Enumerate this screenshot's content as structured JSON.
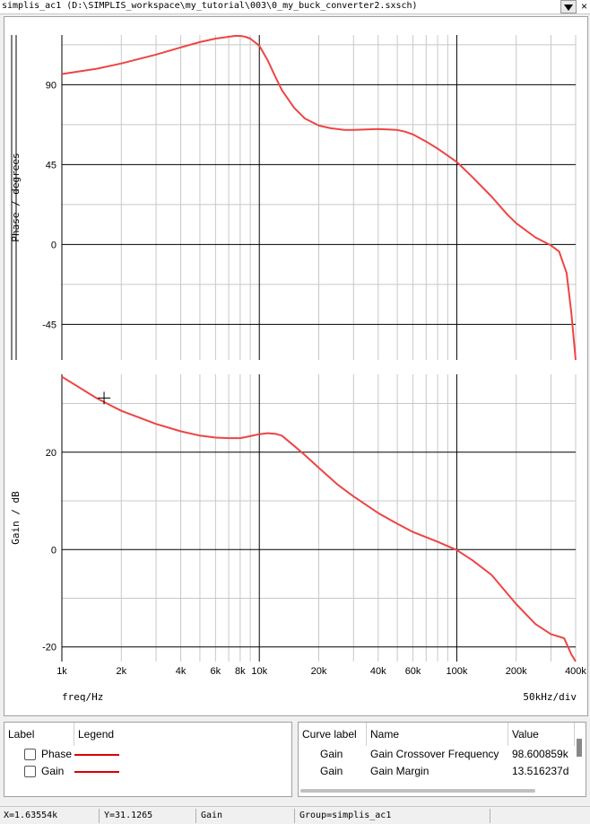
{
  "window": {
    "title": "simplis_ac1 (D:\\SIMPLIS_workspace\\my_tutorial\\003\\0_my_buck_converter2.sxsch)",
    "close_glyph": "×"
  },
  "chart_data": {
    "type": "line",
    "x_scale": "log",
    "xlim": [
      1000,
      400000
    ],
    "x_ticks": [
      {
        "v": 1000,
        "label": "1k"
      },
      {
        "v": 2000,
        "label": "2k"
      },
      {
        "v": 4000,
        "label": "4k"
      },
      {
        "v": 6000,
        "label": "6k"
      },
      {
        "v": 8000,
        "label": "8k"
      },
      {
        "v": 10000,
        "label": "10k"
      },
      {
        "v": 20000,
        "label": "20k"
      },
      {
        "v": 40000,
        "label": "40k"
      },
      {
        "v": 60000,
        "label": "60k"
      },
      {
        "v": 100000,
        "label": "100k"
      },
      {
        "v": 200000,
        "label": "200k"
      },
      {
        "v": 400000,
        "label": "400k"
      }
    ],
    "xlabel": "freq/Hz",
    "x_div_label": "50kHz/div",
    "grid": true,
    "panels": [
      {
        "name": "Phase",
        "ylabel": "Phase / degrees",
        "ylim": [
          -65,
          118
        ],
        "y_ticks": [
          -45,
          0,
          45,
          90
        ],
        "color": "#ee4444",
        "x": [
          1000,
          1500,
          2000,
          3000,
          4000,
          5000,
          6000,
          7000,
          7500,
          8000,
          8500,
          9000,
          10000,
          11000,
          12000,
          13000,
          15000,
          17000,
          20000,
          23000,
          27000,
          30000,
          40000,
          50000,
          55000,
          60000,
          70000,
          80000,
          100000,
          120000,
          150000,
          180000,
          200000,
          250000,
          300000,
          330000,
          360000,
          380000,
          400000
        ],
        "values": [
          96,
          99,
          102,
          107,
          111,
          114,
          116,
          117,
          117.5,
          117.5,
          117,
          116,
          112,
          104,
          95,
          87,
          77,
          71,
          67,
          65.5,
          64.5,
          64.5,
          65,
          64.5,
          63.5,
          62,
          58,
          54,
          46.5,
          38,
          27,
          17,
          12,
          4,
          -0.5,
          -4,
          -16,
          -38,
          -70
        ]
      },
      {
        "name": "Gain",
        "ylabel": "Gain / dB",
        "ylim": [
          -23,
          36
        ],
        "y_ticks": [
          -20,
          0,
          20
        ],
        "color": "#ee4444",
        "x": [
          1000,
          1500,
          2000,
          3000,
          4000,
          5000,
          6000,
          7000,
          8000,
          9000,
          10000,
          11000,
          12000,
          13000,
          15000,
          17000,
          20000,
          25000,
          30000,
          40000,
          50000,
          60000,
          80000,
          100000,
          120000,
          150000,
          200000,
          250000,
          300000,
          350000,
          380000,
          400000
        ],
        "values": [
          35.5,
          31.1,
          28.5,
          25.8,
          24.3,
          23.4,
          23.0,
          22.9,
          22.9,
          23.3,
          23.7,
          23.9,
          23.8,
          23.4,
          21.3,
          19.4,
          16.8,
          13.3,
          10.9,
          7.5,
          5.3,
          3.6,
          1.6,
          -0.1,
          -2.2,
          -5.2,
          -11.2,
          -15.3,
          -17.4,
          -18.2,
          -21.5,
          -23.5
        ]
      }
    ],
    "cursor": {
      "x": 1635.54,
      "y": 31.1265,
      "panel": "Gain"
    }
  },
  "legend": {
    "headers": [
      "Label",
      "Legend"
    ],
    "items": [
      {
        "label": "Phase",
        "color": "#dd0000"
      },
      {
        "label": "Gain",
        "color": "#dd0000"
      }
    ]
  },
  "values_table": {
    "headers": [
      "Curve label",
      "Name",
      "Value"
    ],
    "rows": [
      {
        "curve": "Gain",
        "name": "Gain Crossover Frequency",
        "value": "98.600859k"
      },
      {
        "curve": "Gain",
        "name": "Gain Margin",
        "value": "13.516237d"
      }
    ]
  },
  "status": {
    "x": "X=1.63554k",
    "y": "Y=31.1265",
    "curve": "Gain",
    "group": "Group=simplis_ac1"
  }
}
